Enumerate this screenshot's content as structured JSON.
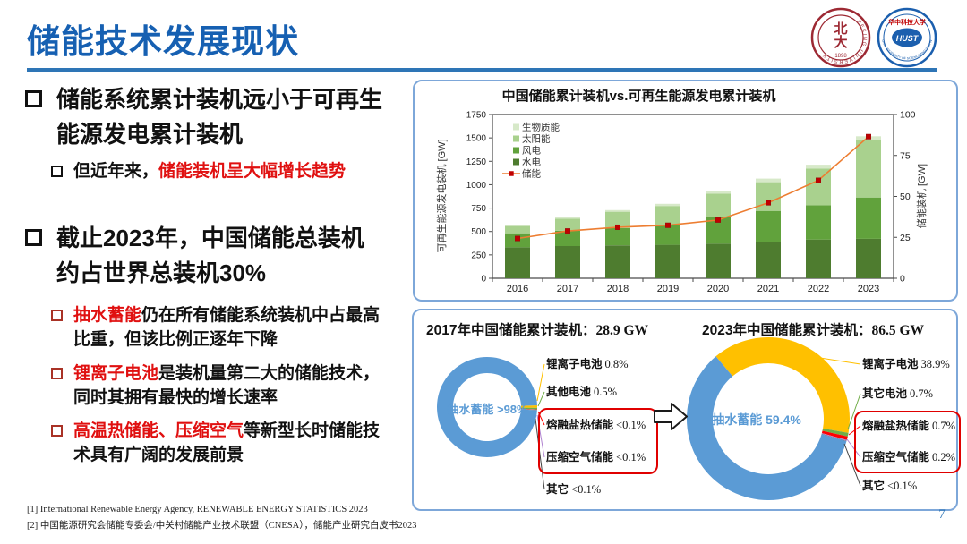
{
  "slide": {
    "title": "储能技术发展现状",
    "page_number": "7",
    "footnotes": [
      "[1] International Renewable Energy Agency, RENEWABLE ENERGY STATISTICS 2023",
      "[2] 中国能源研究会储能专委会/中关村储能产业技术联盟（CNESA），储能产业研究白皮书2023"
    ]
  },
  "logos": {
    "pku": {
      "ring_text": "PEKING UNIVERSITY",
      "year": "1898",
      "center_text": "北大",
      "color": "#9d2933"
    },
    "hust": {
      "cn": "华中科技大学",
      "abbr": "HUST",
      "en": "HUAZHONG UNIVERSITY OF SCIENCE AND TECHNOLOGY",
      "color": "#1b5fae",
      "red": "#c00000"
    }
  },
  "left_panel": {
    "b1": "储能系统累计装机远小于可再生能源发电累计装机",
    "b1_sub_plain": "但近年来，",
    "b1_sub_red": "储能装机呈大幅增长趋势",
    "b2": "截止2023年，中国储能总装机约占世界总装机30%",
    "b2_subs": [
      {
        "red": "抽水蓄能",
        "plain": "仍在所有储能系统装机中占最高比重，但该比例正逐年下降"
      },
      {
        "red": "锂离子电池",
        "plain": "是装机量第二大的储能技术，同时其拥有最快的增长速率"
      },
      {
        "red": "高温热储能、压缩空气",
        "plain": "等新型长时储能技术具有广阔的发展前景"
      }
    ]
  },
  "chart_data": [
    {
      "type": "bar",
      "title": "中国储能累计装机vs.可再生能源发电累计装机",
      "categories": [
        "2016",
        "2017",
        "2018",
        "2019",
        "2020",
        "2021",
        "2022",
        "2023"
      ],
      "series": [
        {
          "name": "水电",
          "color": "#4e7c2f",
          "values": [
            332,
            344,
            352,
            358,
            370,
            391,
            414,
            422
          ]
        },
        {
          "name": "风电",
          "color": "#61a23c",
          "values": [
            149,
            164,
            184,
            210,
            282,
            329,
            366,
            442
          ]
        },
        {
          "name": "太阳能",
          "color": "#a9d18e",
          "values": [
            77,
            130,
            175,
            205,
            254,
            307,
            393,
            610
          ]
        },
        {
          "name": "生物质能",
          "color": "#d7e9c9",
          "values": [
            12,
            15,
            18,
            23,
            30,
            38,
            41,
            44
          ]
        }
      ],
      "line_series": {
        "name": "储能",
        "axis": "right",
        "color": "#ed7d31",
        "marker_color": "#c00000",
        "values": [
          24.3,
          28.9,
          31.2,
          32.4,
          35.6,
          46.1,
          59.8,
          86.5
        ]
      },
      "ylabel_left": "可再生能源发电装机 [GW]",
      "ylabel_right": "储能装机 [GW]",
      "ylim_left": [
        0,
        1750
      ],
      "ytick_step_left": 250,
      "ylim_right": [
        0,
        100
      ],
      "ytick_step_right": 25,
      "grid": false,
      "legend_position": "top-left-inside",
      "legend_order": [
        "生物质能",
        "太阳能",
        "风电",
        "水电",
        "储能"
      ]
    },
    {
      "type": "pie",
      "title": "2017年中国储能累计装机：",
      "title_value": "28.9 GW",
      "inner_label": "抽水蓄能 >98%",
      "slices": [
        {
          "label": "抽水蓄能",
          "pct_text": ">98%",
          "value": 98.3,
          "color": "#5b9bd5"
        },
        {
          "label": "锂离子电池",
          "pct_text": "0.8%",
          "value": 0.8,
          "color": "#ffc000"
        },
        {
          "label": "其他电池",
          "pct_text": "0.5%",
          "value": 0.5,
          "color": "#70ad47"
        },
        {
          "label": "熔融盐热储能",
          "pct_text": "<0.1%",
          "value": 0.1,
          "color": "#ff0000",
          "boxed": true
        },
        {
          "label": "压缩空气储能",
          "pct_text": "<0.1%",
          "value": 0.1,
          "color": "#b083d0",
          "boxed": true
        },
        {
          "label": "其它",
          "pct_text": "<0.1%",
          "value": 0.1,
          "color": "#555555",
          "leader_color": "#444444"
        }
      ],
      "annotation_box_color": "#e00000"
    },
    {
      "type": "pie",
      "title": "2023年中国储能累计装机：",
      "title_value": "86.5 GW",
      "inner_label": "抽水蓄能  59.4%",
      "slices": [
        {
          "label": "抽水蓄能",
          "pct_text": "59.4%",
          "value": 59.4,
          "color": "#5b9bd5"
        },
        {
          "label": "锂离子电池",
          "pct_text": "38.9%",
          "value": 38.9,
          "color": "#ffc000"
        },
        {
          "label": "其它电池",
          "pct_text": "0.7%",
          "value": 0.7,
          "color": "#70ad47"
        },
        {
          "label": "熔融盐热储能",
          "pct_text": "0.7%",
          "value": 0.7,
          "color": "#ff0000",
          "boxed": true
        },
        {
          "label": "压缩空气储能",
          "pct_text": "0.2%",
          "value": 0.2,
          "color": "#b083d0",
          "boxed": true
        },
        {
          "label": "其它",
          "pct_text": "<0.1%",
          "value": 0.08,
          "color": "#555555",
          "leader_color": "#444444"
        }
      ],
      "annotation_box_color": "#e00000"
    }
  ]
}
